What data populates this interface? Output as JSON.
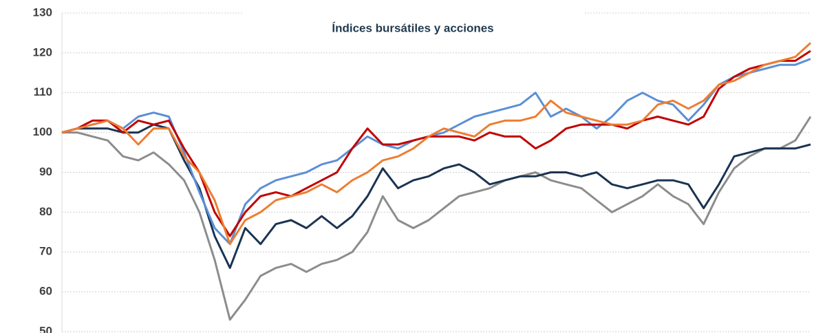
{
  "chart_data": {
    "type": "line",
    "title": "Índices bursátiles y acciones",
    "ylim": [
      50,
      130
    ],
    "yticks": [
      50,
      60,
      70,
      80,
      90,
      100,
      110,
      120,
      130
    ],
    "grid": true,
    "series": [
      {
        "color": "#8c8c8c",
        "values": [
          100,
          100,
          99,
          98,
          94,
          93,
          95,
          92,
          88,
          80,
          68,
          53,
          58,
          64,
          66,
          67,
          65,
          67,
          68,
          70,
          75,
          84,
          78,
          76,
          78,
          81,
          84,
          85,
          86,
          88,
          89,
          90,
          88,
          87,
          86,
          83,
          80,
          82,
          84,
          87,
          84,
          82,
          77,
          85,
          91,
          94,
          96,
          96,
          98,
          104
        ]
      },
      {
        "color": "#1a3352",
        "values": [
          100,
          101,
          101,
          101,
          100,
          100,
          102,
          101,
          93,
          86,
          74,
          66,
          76,
          72,
          77,
          78,
          76,
          79,
          76,
          79,
          84,
          91,
          86,
          88,
          89,
          91,
          92,
          90,
          87,
          88,
          89,
          89,
          90,
          90,
          89,
          90,
          87,
          86,
          87,
          88,
          88,
          87,
          81,
          87,
          94,
          95,
          96,
          96,
          96,
          97
        ]
      },
      {
        "color": "#5b8fd6",
        "values": [
          100,
          101,
          102,
          103,
          101,
          104,
          105,
          104,
          95,
          85,
          76,
          72,
          82,
          86,
          88,
          89,
          90,
          92,
          93,
          96,
          99,
          97,
          96,
          98,
          99,
          100,
          102,
          104,
          105,
          106,
          107,
          110,
          104,
          106,
          104,
          101,
          104,
          108,
          110,
          108,
          107,
          103,
          107,
          112,
          114,
          115,
          116,
          117,
          117,
          118.5
        ]
      },
      {
        "color": "#c00000",
        "values": [
          100,
          101,
          103,
          103,
          100,
          103,
          102,
          103,
          96,
          90,
          80,
          74,
          80,
          84,
          85,
          84,
          86,
          88,
          90,
          96,
          101,
          97,
          97,
          98,
          99,
          99,
          99,
          98,
          100,
          99,
          99,
          96,
          98,
          101,
          102,
          102,
          102,
          101,
          103,
          104,
          103,
          102,
          104,
          111,
          114,
          116,
          117,
          118,
          118,
          120.5
        ]
      },
      {
        "color": "#ed7d31",
        "values": [
          100,
          101,
          102,
          103,
          101,
          97,
          101,
          101,
          94,
          90,
          83,
          72,
          78,
          80,
          83,
          84,
          85,
          87,
          85,
          88,
          90,
          93,
          94,
          96,
          99,
          101,
          100,
          99,
          102,
          103,
          103,
          104,
          108,
          105,
          104,
          103,
          102,
          102,
          103,
          107,
          108,
          106,
          108,
          112,
          113,
          115,
          117,
          118,
          119,
          122.5
        ]
      }
    ]
  }
}
